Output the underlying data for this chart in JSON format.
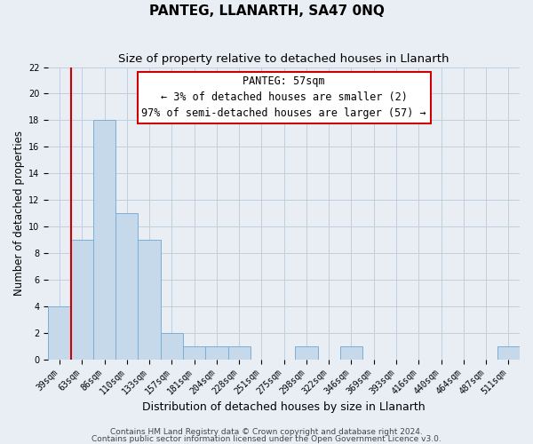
{
  "title": "PANTEG, LLANARTH, SA47 0NQ",
  "subtitle": "Size of property relative to detached houses in Llanarth",
  "xlabel": "Distribution of detached houses by size in Llanarth",
  "ylabel": "Number of detached properties",
  "categories": [
    "39sqm",
    "63sqm",
    "86sqm",
    "110sqm",
    "133sqm",
    "157sqm",
    "181sqm",
    "204sqm",
    "228sqm",
    "251sqm",
    "275sqm",
    "298sqm",
    "322sqm",
    "346sqm",
    "369sqm",
    "393sqm",
    "416sqm",
    "440sqm",
    "464sqm",
    "487sqm",
    "511sqm"
  ],
  "values": [
    4,
    9,
    18,
    11,
    9,
    2,
    1,
    1,
    1,
    0,
    0,
    1,
    0,
    1,
    0,
    0,
    0,
    0,
    0,
    0,
    1
  ],
  "bar_color": "#c5d9ea",
  "bar_edge_color": "#7bafd4",
  "red_line_x": 0.5,
  "annotation_title": "PANTEG: 57sqm",
  "annotation_line1": "← 3% of detached houses are smaller (2)",
  "annotation_line2": "97% of semi-detached houses are larger (57) →",
  "ylim": [
    0,
    22
  ],
  "yticks": [
    0,
    2,
    4,
    6,
    8,
    10,
    12,
    14,
    16,
    18,
    20,
    22
  ],
  "footer1": "Contains HM Land Registry data © Crown copyright and database right 2024.",
  "footer2": "Contains public sector information licensed under the Open Government Licence v3.0.",
  "bg_color": "#e8eef4",
  "plot_bg_color": "#e8eef4",
  "grid_color": "#c0d0de",
  "title_fontsize": 11,
  "subtitle_fontsize": 9.5,
  "tick_fontsize": 7,
  "ylabel_fontsize": 8.5,
  "xlabel_fontsize": 9,
  "annotation_fontsize": 8.5,
  "footer_fontsize": 6.5
}
